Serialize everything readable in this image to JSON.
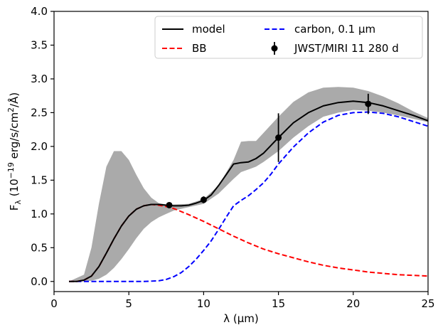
{
  "chart_data": {
    "type": "line",
    "xlabel": "λ (μm)",
    "ylabel_parts": [
      "F",
      "λ",
      " (10",
      "−19",
      " erg/s/cm",
      "2",
      "/Å)"
    ],
    "xlim": [
      0,
      25
    ],
    "ylim": [
      -0.15,
      4.0
    ],
    "x_ticks": [
      0,
      5,
      10,
      15,
      20,
      25
    ],
    "x_tick_labels": [
      "0",
      "5",
      "10",
      "15",
      "20",
      "25"
    ],
    "y_ticks": [
      0.0,
      0.5,
      1.0,
      1.5,
      2.0,
      2.5,
      3.0,
      3.5,
      4.0
    ],
    "y_tick_labels": [
      "0.0",
      "0.5",
      "1.0",
      "1.5",
      "2.0",
      "2.5",
      "3.0",
      "3.5",
      "4.0"
    ],
    "grid": false,
    "legend_position": "top-right",
    "colors": {
      "model": "#000000",
      "bb": "#ff0000",
      "carbon": "#0000ff",
      "band": "#aaaaaa",
      "data": "#000000"
    },
    "band": {
      "x": [
        1,
        2,
        2.5,
        3,
        3.5,
        4,
        4.5,
        5,
        5.5,
        6,
        6.5,
        7,
        7.5,
        8,
        9,
        10,
        11,
        12,
        12.5,
        13,
        13.5,
        14,
        15,
        16,
        17,
        18,
        19,
        20,
        21,
        22,
        23,
        24,
        25
      ],
      "upper": [
        0,
        0.1,
        0.5,
        1.15,
        1.7,
        1.93,
        1.93,
        1.8,
        1.58,
        1.38,
        1.24,
        1.16,
        1.14,
        1.14,
        1.15,
        1.22,
        1.42,
        1.8,
        2.07,
        2.08,
        2.08,
        2.2,
        2.44,
        2.66,
        2.8,
        2.87,
        2.88,
        2.87,
        2.82,
        2.74,
        2.64,
        2.52,
        2.42
      ],
      "lower": [
        0,
        0,
        0.01,
        0.04,
        0.1,
        0.2,
        0.33,
        0.48,
        0.64,
        0.78,
        0.88,
        0.95,
        1.0,
        1.05,
        1.1,
        1.15,
        1.3,
        1.52,
        1.62,
        1.66,
        1.7,
        1.77,
        1.93,
        2.13,
        2.3,
        2.44,
        2.5,
        2.54,
        2.53,
        2.5,
        2.46,
        2.41,
        2.36
      ]
    },
    "series": [
      {
        "name": "model",
        "style": "solid",
        "x": [
          1,
          1.5,
          2,
          2.5,
          3,
          3.5,
          4,
          4.5,
          5,
          5.5,
          6,
          6.5,
          7,
          7.5,
          8,
          8.5,
          9,
          9.5,
          10,
          10.5,
          11,
          11.5,
          12,
          12.5,
          13,
          13.5,
          14,
          15,
          16,
          17,
          18,
          19,
          20,
          21,
          22,
          23,
          24,
          25
        ],
        "y": [
          0,
          0,
          0.02,
          0.08,
          0.22,
          0.42,
          0.63,
          0.82,
          0.97,
          1.07,
          1.12,
          1.14,
          1.14,
          1.13,
          1.12,
          1.12,
          1.13,
          1.16,
          1.2,
          1.28,
          1.42,
          1.58,
          1.74,
          1.76,
          1.77,
          1.82,
          1.9,
          2.13,
          2.35,
          2.5,
          2.6,
          2.65,
          2.67,
          2.65,
          2.6,
          2.53,
          2.46,
          2.38
        ]
      },
      {
        "name": "BB",
        "style": "dashed",
        "x": [
          1,
          1.5,
          2,
          2.5,
          3,
          3.5,
          4,
          4.5,
          5,
          5.5,
          6,
          6.5,
          7,
          7.5,
          8,
          9,
          10,
          11,
          12,
          13,
          14,
          15,
          16,
          17,
          18,
          19,
          20,
          21,
          22,
          23,
          24,
          25
        ],
        "y": [
          0,
          0,
          0.02,
          0.08,
          0.22,
          0.42,
          0.63,
          0.82,
          0.97,
          1.07,
          1.12,
          1.14,
          1.13,
          1.11,
          1.08,
          0.99,
          0.89,
          0.78,
          0.67,
          0.57,
          0.48,
          0.41,
          0.35,
          0.29,
          0.24,
          0.2,
          0.17,
          0.14,
          0.12,
          0.1,
          0.09,
          0.08
        ]
      },
      {
        "name": "carbon, 0.1 μm",
        "style": "dashed",
        "x": [
          1,
          2,
          4,
          5,
          6,
          7,
          7.5,
          8,
          8.5,
          9,
          9.5,
          10,
          10.5,
          11,
          11.5,
          12,
          12.5,
          13,
          13.5,
          14,
          14.5,
          15,
          16,
          17,
          18,
          19,
          20,
          21,
          22,
          23,
          24,
          25
        ],
        "y": [
          0,
          0,
          0,
          0,
          0,
          0.01,
          0.03,
          0.07,
          0.13,
          0.22,
          0.33,
          0.46,
          0.6,
          0.77,
          0.95,
          1.12,
          1.2,
          1.27,
          1.36,
          1.46,
          1.59,
          1.74,
          1.99,
          2.2,
          2.36,
          2.46,
          2.5,
          2.51,
          2.49,
          2.44,
          2.37,
          2.3
        ]
      }
    ],
    "points": {
      "name": "JWST/MIRI 11 280 d",
      "x": [
        7.7,
        10.0,
        15.0,
        21.0
      ],
      "y": [
        1.13,
        1.21,
        2.13,
        2.63
      ],
      "yerr": [
        0.03,
        0.05,
        0.36,
        0.15
      ]
    },
    "legend": [
      {
        "label": "model",
        "kind": "solid",
        "color": "#000000"
      },
      {
        "label": "BB",
        "kind": "dashed",
        "color": "#ff0000"
      },
      {
        "label": "carbon, 0.1 μm",
        "kind": "dashed",
        "color": "#0000ff"
      },
      {
        "label": "JWST/MIRI 11 280 d",
        "kind": "errorbar",
        "color": "#000000"
      }
    ]
  }
}
